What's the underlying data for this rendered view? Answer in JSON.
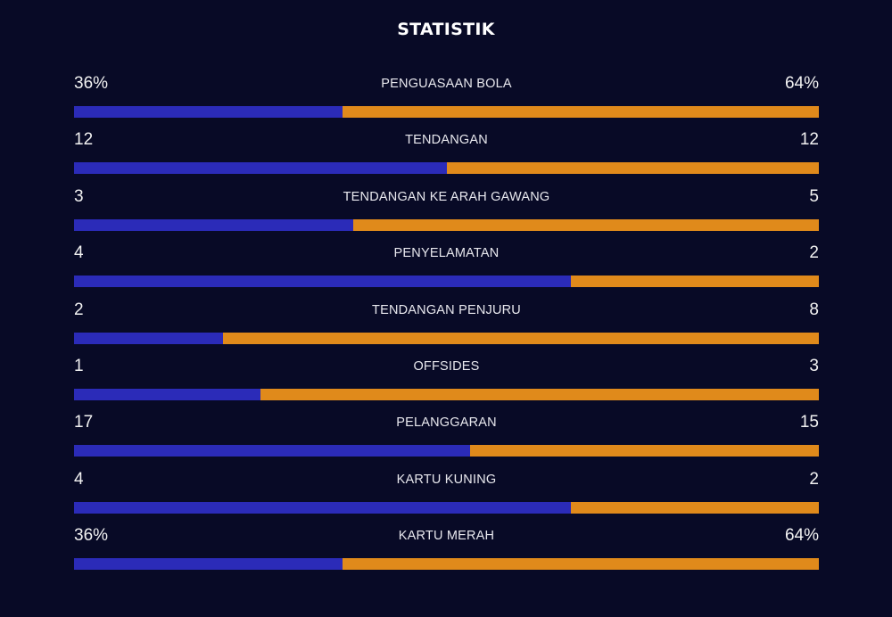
{
  "title": "STATISTIK",
  "colors": {
    "background": "#080a26",
    "home": "#2b2bb8",
    "away": "#e08a1b"
  },
  "stats": [
    {
      "label": "PENGUASAAN BOLA",
      "home": "36%",
      "away": "64%",
      "home_share": 0.36
    },
    {
      "label": "TENDANGAN",
      "home": "12",
      "away": "12",
      "home_share": 0.5
    },
    {
      "label": "TENDANGAN KE ARAH GAWANG",
      "home": "3",
      "away": "5",
      "home_share": 0.375
    },
    {
      "label": "PENYELAMATAN",
      "home": "4",
      "away": "2",
      "home_share": 0.6667
    },
    {
      "label": "TENDANGAN PENJURU",
      "home": "2",
      "away": "8",
      "home_share": 0.2
    },
    {
      "label": "OFFSIDES",
      "home": "1",
      "away": "3",
      "home_share": 0.25
    },
    {
      "label": "PELANGGARAN",
      "home": "17",
      "away": "15",
      "home_share": 0.53125
    },
    {
      "label": "KARTU KUNING",
      "home": "4",
      "away": "2",
      "home_share": 0.6667
    },
    {
      "label": "KARTU MERAH",
      "home": "36%",
      "away": "64%",
      "home_share": 0.36
    }
  ]
}
